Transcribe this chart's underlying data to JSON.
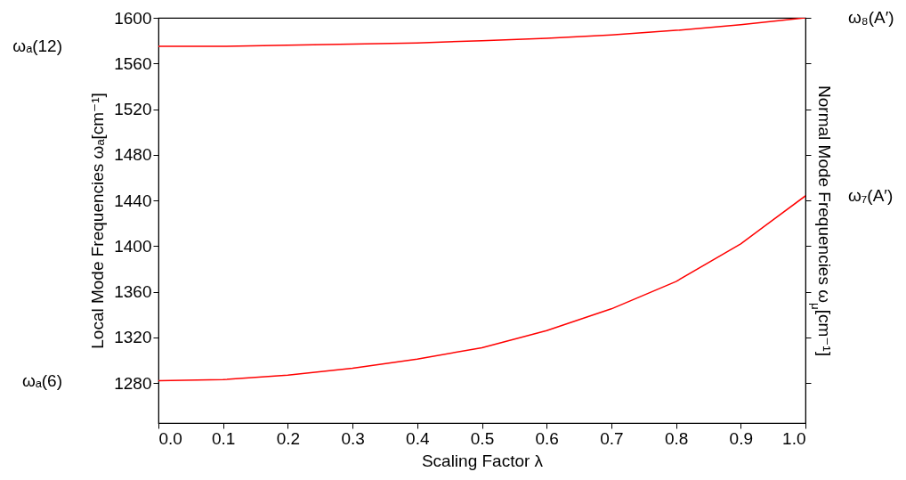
{
  "chart_data": {
    "type": "line",
    "xlabel": "Scaling Factor λ",
    "ylabel": "Local Mode Frequencies ωₐ[cm⁻¹]",
    "y2label": "Normal Mode Frequencies ω$_{μ}$[cm⁻¹]",
    "x": [
      0,
      0.1,
      0.2,
      0.3,
      0.4,
      0.5,
      0.6,
      0.7,
      0.8,
      0.9,
      1.0
    ],
    "series": [
      {
        "color": "#ff0000",
        "values": [
          1575,
          1575,
          1576,
          1577,
          1578,
          1580,
          1582,
          1585,
          1589,
          1594,
          1600
        ]
      },
      {
        "color": "#ff0000",
        "values": [
          1282,
          1283,
          1287,
          1293,
          1301,
          1311,
          1326,
          1345,
          1369,
          1402,
          1444
        ]
      }
    ],
    "xlim": [
      0,
      1
    ],
    "xticks": [
      {
        "value": 0,
        "label": "0.0"
      },
      {
        "value": 0.1,
        "label": "0.1"
      },
      {
        "value": 0.2,
        "label": "0.2"
      },
      {
        "value": 0.3,
        "label": "0.3"
      },
      {
        "value": 0.4,
        "label": "0.4"
      },
      {
        "value": 0.5,
        "label": "0.5"
      },
      {
        "value": 0.6,
        "label": "0.6"
      },
      {
        "value": 0.7,
        "label": "0.7"
      },
      {
        "value": 0.8,
        "label": "0.8"
      },
      {
        "value": 0.9,
        "label": "0.9"
      },
      {
        "value": 1,
        "label": "1.0"
      }
    ],
    "ylim": [
      1245,
      1600
    ],
    "yticks": [
      1280,
      1320,
      1360,
      1400,
      1440,
      1480,
      1520,
      1560,
      1600
    ],
    "annotations": [
      "ωₐ(12)",
      "ωₐ(6)",
      "ω₈(A′)",
      "ω₇(A′)"
    ],
    "grid": false,
    "marker": "none",
    "line_style": "solid"
  }
}
